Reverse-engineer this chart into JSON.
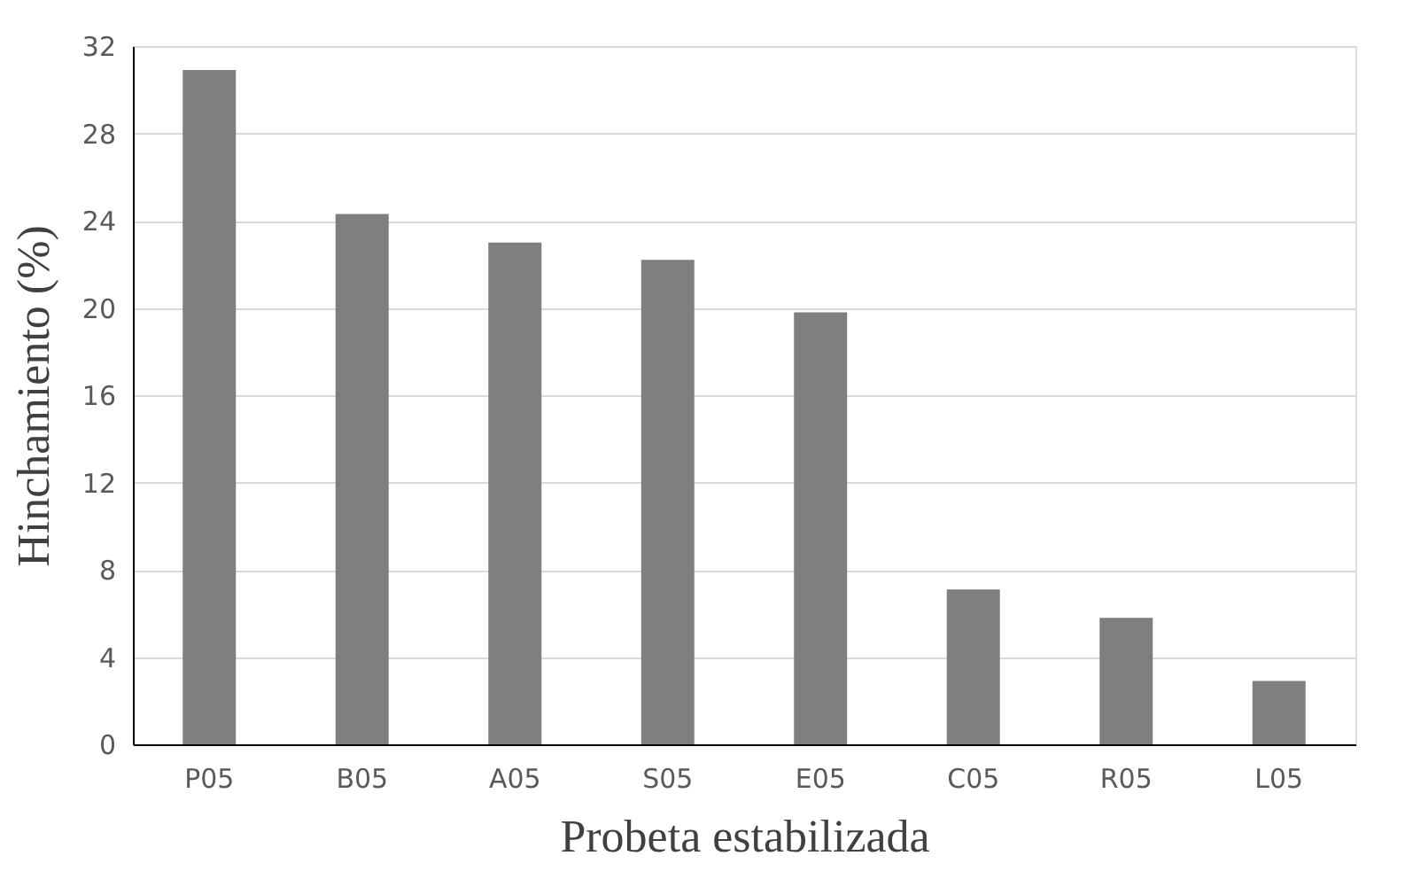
{
  "chart_data": {
    "type": "bar",
    "xlabel": "Probeta estabilizada",
    "ylabel": "Hinchamiento (%)",
    "categories": [
      "P05",
      "B05",
      "A05",
      "S05",
      "E05",
      "C05",
      "R05",
      "L05"
    ],
    "values": [
      30.9,
      24.3,
      23.0,
      22.2,
      19.8,
      7.1,
      5.8,
      2.9
    ],
    "color": "#7f7f7f",
    "ylim": [
      0,
      32
    ],
    "yticks": [
      0,
      4,
      8,
      12,
      16,
      20,
      24,
      28,
      32
    ],
    "grid": "y"
  }
}
